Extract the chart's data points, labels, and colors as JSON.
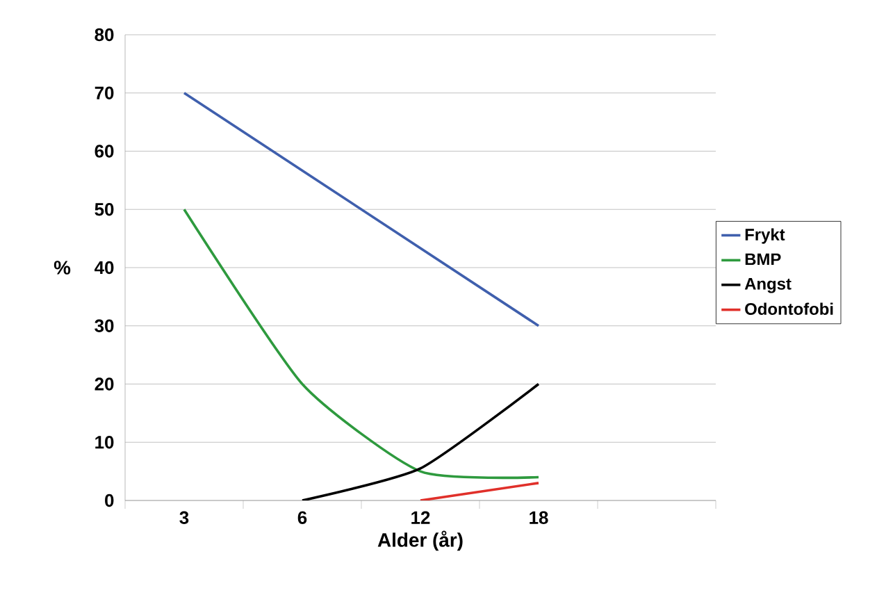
{
  "chart_data": {
    "type": "line",
    "xlabel": "Alder (år)",
    "ylabel": "%",
    "categories": [
      "3",
      "6",
      "12",
      "18",
      null
    ],
    "series": [
      {
        "name": "Frykt",
        "color": "#3f5fad",
        "values": [
          70,
          null,
          null,
          30,
          null
        ]
      },
      {
        "name": "BMP",
        "color": "#2e9a3e",
        "values": [
          50,
          20,
          5,
          4,
          null
        ]
      },
      {
        "name": "Angst",
        "color": "#000000",
        "values": [
          null,
          0,
          5.5,
          20,
          null
        ]
      },
      {
        "name": "Odontofobi",
        "color": "#e0302a",
        "values": [
          null,
          null,
          0,
          3,
          null
        ]
      }
    ],
    "ylim": [
      0,
      80
    ],
    "yticks": [
      0,
      10,
      20,
      30,
      40,
      50,
      60,
      70,
      80
    ],
    "grid": "y",
    "legend": "right",
    "marker": "none",
    "line_style": "solid"
  }
}
